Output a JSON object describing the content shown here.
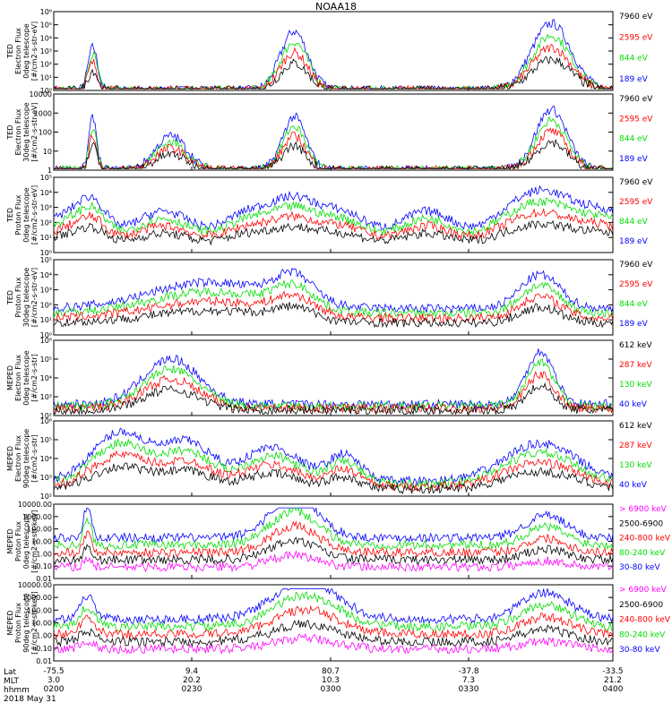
{
  "title": "NOAA18",
  "footer": {
    "rows": [
      "Lat",
      "MLT",
      "hhmm",
      "2018 May 31"
    ]
  },
  "xticks": [
    {
      "lat": "-75.5",
      "mlt": "3.0",
      "hhmm": "0200"
    },
    {
      "lat": "9.4",
      "mlt": "20.2",
      "hhmm": "0230"
    },
    {
      "lat": "80.7",
      "mlt": "10.3",
      "hhmm": "0300"
    },
    {
      "lat": "-37.8",
      "mlt": "7.3",
      "hhmm": "0330"
    },
    {
      "lat": "-33.5",
      "mlt": "21.2",
      "hhmm": "0400"
    }
  ],
  "colors": {
    "black": "#000000",
    "red": "#ff0000",
    "green": "#00dd00",
    "blue": "#0000ff",
    "magenta": "#ff00ff"
  },
  "chart_data": [
    {
      "type": "line",
      "scale": "log",
      "ylabel": [
        "TED",
        "Electron Flux",
        "0deg telescope",
        "[#/cm2-s-str-eV]"
      ],
      "ylim": [
        1,
        1000000
      ],
      "yticks": [
        "10⁰",
        "10¹",
        "10²",
        "10³",
        "10⁴",
        "10⁵",
        "10⁶"
      ],
      "legend": [
        {
          "label": "7960 eV",
          "color": "#000000"
        },
        {
          "label": "2595 eV",
          "color": "#ff0000"
        },
        {
          "label": "844 eV",
          "color": "#00dd00"
        },
        {
          "label": "189 eV",
          "color": "#0000ff"
        }
      ]
    },
    {
      "type": "line",
      "scale": "log",
      "ylabel": [
        "TED",
        "Electron Flux",
        "30deg telescope",
        "[#/cm2-s-str-eV]"
      ],
      "ylim": [
        1,
        10000
      ],
      "yticks": [
        "1",
        "10",
        "100",
        "1000",
        "10000"
      ],
      "legend": [
        {
          "label": "7960 eV",
          "color": "#000000"
        },
        {
          "label": "2595 eV",
          "color": "#ff0000"
        },
        {
          "label": "844 eV",
          "color": "#00dd00"
        },
        {
          "label": "189 eV",
          "color": "#0000ff"
        }
      ]
    },
    {
      "type": "line",
      "scale": "log",
      "ylabel": [
        "TED",
        "Proton Flux",
        "0deg telescope",
        "[#/cm2-s-str-eV]"
      ],
      "ylim": [
        1,
        100000
      ],
      "yticks": [
        "10⁰",
        "10¹",
        "10²",
        "10³",
        "10⁴",
        "10⁵"
      ],
      "legend": [
        {
          "label": "7960 eV",
          "color": "#000000"
        },
        {
          "label": "2595 eV",
          "color": "#ff0000"
        },
        {
          "label": "844 eV",
          "color": "#00dd00"
        },
        {
          "label": "189 eV",
          "color": "#0000ff"
        }
      ]
    },
    {
      "type": "line",
      "scale": "log",
      "ylabel": [
        "TED",
        "Proton Flux",
        "30deg telescope",
        "[#/cm2-s-str-eV]"
      ],
      "ylim": [
        1,
        100000
      ],
      "yticks": [
        "10⁰",
        "10¹",
        "10²",
        "10³",
        "10⁴",
        "10⁵"
      ],
      "legend": [
        {
          "label": "7960 eV",
          "color": "#000000"
        },
        {
          "label": "2595 eV",
          "color": "#ff0000"
        },
        {
          "label": "844 eV",
          "color": "#00dd00"
        },
        {
          "label": "189 eV",
          "color": "#0000ff"
        }
      ]
    },
    {
      "type": "line",
      "scale": "log",
      "ylabel": [
        "MEPED",
        "Electron Flux",
        "0deg telescope",
        "[#/cm2-s-str]"
      ],
      "ylim": [
        100,
        1000000
      ],
      "yticks": [
        "10²",
        "10³",
        "10⁴",
        "10⁵",
        "10⁶"
      ],
      "legend": [
        {
          "label": "612 keV",
          "color": "#000000"
        },
        {
          "label": "287 keV",
          "color": "#ff0000"
        },
        {
          "label": "130 keV",
          "color": "#00dd00"
        },
        {
          "label": "40 keV",
          "color": "#0000ff"
        }
      ]
    },
    {
      "type": "line",
      "scale": "log",
      "ylabel": [
        "MEPED",
        "Electron Flux",
        "90deg telescope",
        "[#/cm2-s-str]"
      ],
      "ylim": [
        100,
        1000000
      ],
      "yticks": [
        "10²",
        "10³",
        "10⁴",
        "10⁵",
        "10⁶"
      ],
      "legend": [
        {
          "label": "612 keV",
          "color": "#000000"
        },
        {
          "label": "287 keV",
          "color": "#ff0000"
        },
        {
          "label": "130 keV",
          "color": "#00dd00"
        },
        {
          "label": "40 keV",
          "color": "#0000ff"
        }
      ]
    },
    {
      "type": "line",
      "scale": "log",
      "ylabel": [
        "MEPED",
        "Proton Flux",
        "0deg telescope",
        "[#/cm2-s-str-keV]"
      ],
      "ylim": [
        0.01,
        10000
      ],
      "yticks": [
        "0.01",
        "0.10",
        "1.00",
        "10.00",
        "100.00",
        "1000.00",
        "10000.00"
      ],
      "legend": [
        {
          "label": "> 6900 keV",
          "color": "#ff00ff"
        },
        {
          "label": "2500-6900",
          "color": "#000000"
        },
        {
          "label": "240-800 keV",
          "color": "#ff0000"
        },
        {
          "label": "80-240 keV",
          "color": "#00dd00"
        },
        {
          "label": "30-80 keV",
          "color": "#0000ff"
        }
      ]
    },
    {
      "type": "line",
      "scale": "log",
      "ylabel": [
        "MEPED",
        "Proton Flux",
        "90deg telescope",
        "[#/cm2-s-str-keV]"
      ],
      "ylim": [
        0.01,
        10000
      ],
      "yticks": [
        "0.01",
        "0.10",
        "1.00",
        "10.00",
        "100.00",
        "1000.00",
        "10000.00"
      ],
      "legend": [
        {
          "label": "> 6900 keV",
          "color": "#ff00ff"
        },
        {
          "label": "2500-6900",
          "color": "#000000"
        },
        {
          "label": "240-800 keV",
          "color": "#ff0000"
        },
        {
          "label": "80-240 keV",
          "color": "#00dd00"
        },
        {
          "label": "30-80 keV",
          "color": "#0000ff"
        }
      ]
    }
  ]
}
